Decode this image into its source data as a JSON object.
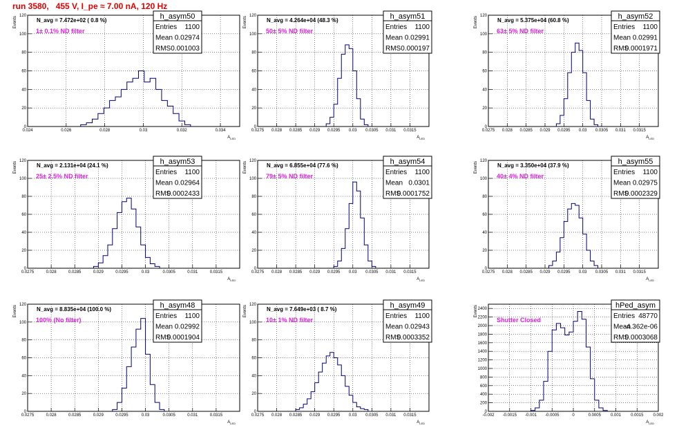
{
  "page": {
    "title": "run 3580,   455 V, I_pe ≈ 7.00 nA, 120 Hz"
  },
  "axes": {
    "ylabel": "Events",
    "xlabel": "A_LED"
  },
  "stats_labels": {
    "entries": "Entries",
    "mean": "Mean",
    "rms": "RMS"
  },
  "colors": {
    "hist": "#00007a",
    "title": "#e00000",
    "filter": "#e020e0"
  },
  "chart_data": [
    {
      "type": "histogram",
      "name": "h_asym50",
      "navg": "N_avg = 7.472e+02 ( 0.8 %)",
      "filter": "1± 0.1% ND filter",
      "entries": "1100",
      "mean": "0.02974",
      "rms": "0.001003",
      "xlim": [
        0.024,
        0.035
      ],
      "ylim": [
        0,
        120
      ],
      "xticks": [
        0.024,
        0.026,
        0.028,
        0.03,
        0.032,
        0.034
      ],
      "xtick_labels": [
        "0.024",
        "0.026",
        "0.028",
        "0.03",
        "0.032",
        "0.034"
      ],
      "yticks": [
        0,
        20,
        40,
        60,
        80,
        100,
        120
      ],
      "x": [
        0.0269,
        0.0272,
        0.0275,
        0.0278,
        0.0281,
        0.0284,
        0.0287,
        0.029,
        0.0293,
        0.0296,
        0.0299,
        0.0302,
        0.0305,
        0.0308,
        0.0311,
        0.0314,
        0.0317,
        0.032,
        0.0323
      ],
      "values": [
        2,
        4,
        8,
        14,
        20,
        28,
        32,
        40,
        48,
        52,
        60,
        48,
        52,
        40,
        28,
        22,
        14,
        6,
        2
      ]
    },
    {
      "type": "histogram",
      "name": "h_asym51",
      "navg": "N_avg = 4.264e+04 (48.3 %)",
      "filter": "50± 5% ND filter",
      "entries": "1100",
      "mean": "0.02991",
      "rms": "0.000197",
      "xlim": [
        0.0275,
        0.032
      ],
      "ylim": [
        0,
        120
      ],
      "xticks": [
        0.0275,
        0.028,
        0.0285,
        0.029,
        0.0295,
        0.03,
        0.0305,
        0.031,
        0.0315
      ],
      "xtick_labels": [
        "0.0275",
        "0.028",
        "0.0285",
        "0.029",
        "0.0295",
        "0.03",
        "0.0305",
        "0.031",
        "0.0315"
      ],
      "yticks": [
        0,
        20,
        40,
        60,
        80,
        100,
        120
      ],
      "x": [
        0.02935,
        0.02945,
        0.02955,
        0.02965,
        0.02975,
        0.02985,
        0.02995,
        0.03005,
        0.03015,
        0.03025,
        0.03035
      ],
      "values": [
        3,
        10,
        24,
        52,
        78,
        88,
        84,
        60,
        30,
        8,
        2
      ]
    },
    {
      "type": "histogram",
      "name": "h_asym52",
      "navg": "N_avg = 5.375e+04 (60.8 %)",
      "filter": "63± 5% ND filter",
      "entries": "1100",
      "mean": "0.02991",
      "rms": "0.0001971",
      "xlim": [
        0.0275,
        0.032
      ],
      "ylim": [
        0,
        120
      ],
      "xticks": [
        0.0275,
        0.028,
        0.0285,
        0.029,
        0.0295,
        0.03,
        0.0305,
        0.031,
        0.0315
      ],
      "xtick_labels": [
        "0.0275",
        "0.028",
        "0.0285",
        "0.029",
        "0.0295",
        "0.03",
        "0.0305",
        "0.031",
        "0.0315"
      ],
      "yticks": [
        0,
        20,
        40,
        60,
        80,
        100,
        120
      ],
      "x": [
        0.02935,
        0.02945,
        0.02955,
        0.02965,
        0.02975,
        0.02985,
        0.02995,
        0.03005,
        0.03015,
        0.03025,
        0.03035
      ],
      "values": [
        3,
        12,
        30,
        58,
        80,
        90,
        82,
        58,
        28,
        8,
        2
      ]
    },
    {
      "type": "histogram",
      "name": "h_asym53",
      "navg": "N_avg = 2.131e+04 (24.1 %)",
      "filter": "25± 2.5% ND filter",
      "entries": "1100",
      "mean": "0.02964",
      "rms": "0.0002433",
      "xlim": [
        0.0275,
        0.032
      ],
      "ylim": [
        0,
        120
      ],
      "xticks": [
        0.0275,
        0.028,
        0.0285,
        0.029,
        0.0295,
        0.03,
        0.0305,
        0.031,
        0.0315
      ],
      "xtick_labels": [
        "0.0275",
        "0.028",
        "0.0285",
        "0.029",
        "0.0295",
        "0.03",
        "0.0305",
        "0.031",
        "0.0315"
      ],
      "yticks": [
        0,
        20,
        40,
        60,
        80,
        100,
        120
      ],
      "x": [
        0.02895,
        0.02905,
        0.02915,
        0.02925,
        0.02935,
        0.02945,
        0.02955,
        0.02965,
        0.02975,
        0.02985,
        0.02995,
        0.03005,
        0.03015,
        0.03025
      ],
      "values": [
        2,
        6,
        14,
        26,
        44,
        62,
        74,
        78,
        66,
        46,
        26,
        12,
        5,
        2
      ]
    },
    {
      "type": "histogram",
      "name": "h_asym54",
      "navg": "N_avg = 6.855e+04 (77.6 %)",
      "filter": "79± 5% ND filter",
      "entries": "1100",
      "mean": "0.0301",
      "rms": "0.0001752",
      "xlim": [
        0.0275,
        0.032
      ],
      "ylim": [
        0,
        120
      ],
      "xticks": [
        0.0275,
        0.028,
        0.0285,
        0.029,
        0.0295,
        0.03,
        0.0305,
        0.031,
        0.0315
      ],
      "xtick_labels": [
        "0.0275",
        "0.028",
        "0.0285",
        "0.029",
        "0.0295",
        "0.03",
        "0.0305",
        "0.031",
        "0.0315"
      ],
      "yticks": [
        0,
        20,
        40,
        60,
        80,
        100,
        120
      ],
      "x": [
        0.02955,
        0.02965,
        0.02975,
        0.02985,
        0.02995,
        0.03005,
        0.03015,
        0.03025,
        0.03035,
        0.03045,
        0.03055
      ],
      "values": [
        2,
        8,
        22,
        44,
        72,
        96,
        86,
        56,
        26,
        8,
        2
      ]
    },
    {
      "type": "histogram",
      "name": "h_asym55",
      "navg": "N_avg = 3.350e+04 (37.9 %)",
      "filter": "40± 4% ND filter",
      "entries": "1100",
      "mean": "0.02975",
      "rms": "0.0002329",
      "xlim": [
        0.0275,
        0.032
      ],
      "ylim": [
        0,
        120
      ],
      "xticks": [
        0.0275,
        0.028,
        0.0285,
        0.029,
        0.0295,
        0.03,
        0.0305,
        0.031,
        0.0315
      ],
      "xtick_labels": [
        "0.0275",
        "0.028",
        "0.0285",
        "0.029",
        "0.0295",
        "0.03",
        "0.0305",
        "0.031",
        "0.0315"
      ],
      "yticks": [
        0,
        20,
        40,
        60,
        80,
        100,
        120
      ],
      "x": [
        0.02915,
        0.02925,
        0.02935,
        0.02945,
        0.02955,
        0.02965,
        0.02975,
        0.02985,
        0.02995,
        0.03005,
        0.03015,
        0.03025,
        0.03035
      ],
      "values": [
        3,
        8,
        18,
        34,
        52,
        66,
        72,
        70,
        56,
        38,
        20,
        8,
        3
      ]
    },
    {
      "type": "histogram",
      "name": "h_asym48",
      "navg": "N_avg = 8.835e+04 (100.0 %)",
      "filter": "100% (No filter)",
      "entries": "1100",
      "mean": "0.02992",
      "rms": "0.0001904",
      "xlim": [
        0.0275,
        0.032
      ],
      "ylim": [
        0,
        120
      ],
      "xticks": [
        0.0275,
        0.028,
        0.0285,
        0.029,
        0.0295,
        0.03,
        0.0305,
        0.031,
        0.0315
      ],
      "xtick_labels": [
        "0.0275",
        "0.028",
        "0.0285",
        "0.029",
        "0.0295",
        "0.03",
        "0.0305",
        "0.031",
        "0.0315"
      ],
      "yticks": [
        0,
        20,
        40,
        60,
        80,
        100,
        120
      ],
      "x": [
        0.02935,
        0.02945,
        0.02955,
        0.02965,
        0.02975,
        0.02985,
        0.02995,
        0.03005,
        0.03015,
        0.03025,
        0.03035
      ],
      "values": [
        2,
        10,
        26,
        50,
        72,
        92,
        104,
        64,
        30,
        10,
        2
      ]
    },
    {
      "type": "histogram",
      "name": "h_asym49",
      "navg": "N_avg = 7.649e+03 ( 8.7 %)",
      "filter": "10± 1% ND filter",
      "entries": "1100",
      "mean": "0.02943",
      "rms": "0.0003352",
      "xlim": [
        0.0275,
        0.032
      ],
      "ylim": [
        0,
        120
      ],
      "xticks": [
        0.0275,
        0.028,
        0.0285,
        0.029,
        0.0295,
        0.03,
        0.0305,
        0.031,
        0.0315
      ],
      "xtick_labels": [
        "0.0275",
        "0.028",
        "0.0285",
        "0.029",
        "0.0295",
        "0.03",
        "0.0305",
        "0.031",
        "0.0315"
      ],
      "yticks": [
        0,
        20,
        40,
        60,
        80,
        100,
        120
      ],
      "x": [
        0.02855,
        0.02865,
        0.02875,
        0.02885,
        0.02895,
        0.02905,
        0.02915,
        0.02925,
        0.02935,
        0.02945,
        0.02955,
        0.02965,
        0.02975,
        0.02985,
        0.02995,
        0.03005,
        0.03015,
        0.03025,
        0.03035
      ],
      "values": [
        2,
        4,
        8,
        14,
        22,
        32,
        44,
        54,
        62,
        66,
        60,
        52,
        40,
        28,
        18,
        10,
        5,
        3,
        2
      ]
    },
    {
      "type": "histogram",
      "name": "hPed_asym",
      "navg": "",
      "filter": "Shutter Closed",
      "entries": "48770",
      "mean": "-4.362e-06",
      "rms": "0.0003068",
      "xlim": [
        -0.002,
        0.002
      ],
      "ylim": [
        0,
        2500
      ],
      "xticks": [
        -0.002,
        -0.0015,
        -0.001,
        -0.0005,
        0,
        0.0005,
        0.001,
        0.0015,
        0.002
      ],
      "xtick_labels": [
        "-0.002",
        "-0.0015",
        "-0.001",
        "-0.0005",
        "0",
        "0.0005",
        "0.001",
        "0.0015",
        "0.002"
      ],
      "yticks": [
        0,
        200,
        400,
        600,
        800,
        1000,
        1200,
        1400,
        1600,
        1800,
        2000,
        2200,
        2400
      ],
      "x": [
        -0.00095,
        -0.00085,
        -0.00075,
        -0.00065,
        -0.00055,
        -0.00045,
        -0.00035,
        -0.00025,
        -0.00015,
        -5e-05,
        5e-05,
        0.00015,
        0.00025,
        0.00035,
        0.00045,
        0.00055,
        0.00065,
        0.00075
      ],
      "values": [
        20,
        80,
        260,
        700,
        1400,
        1900,
        2050,
        1950,
        1780,
        1850,
        2100,
        2330,
        2150,
        1500,
        760,
        260,
        80,
        20
      ]
    }
  ]
}
